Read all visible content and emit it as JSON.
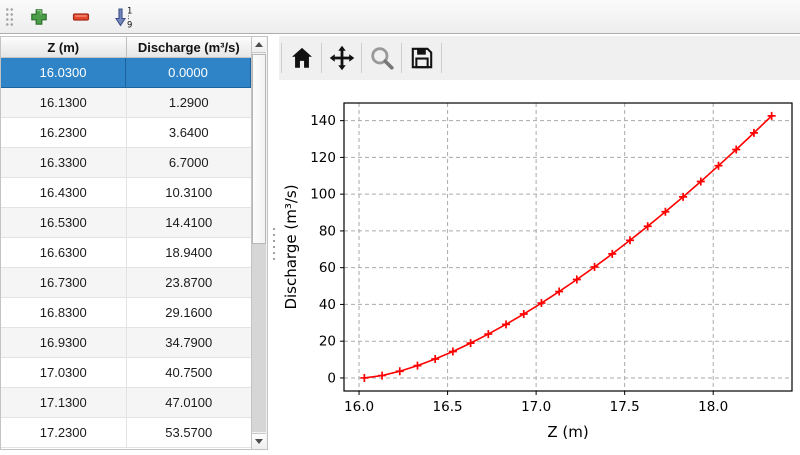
{
  "toolbar": {
    "buttons": [
      {
        "name": "add-row",
        "icon": "plus-icon"
      },
      {
        "name": "remove-row",
        "icon": "minus-icon"
      },
      {
        "name": "sort-rows",
        "icon": "sort-ascending-icon",
        "sort_top": "1",
        "sort_bottom": "9"
      }
    ]
  },
  "table": {
    "columns": [
      "Z (m)",
      "Discharge (m³/s)"
    ],
    "selected_row_index": 0,
    "rows": [
      [
        "16.0300",
        "0.0000"
      ],
      [
        "16.1300",
        "1.2900"
      ],
      [
        "16.2300",
        "3.6400"
      ],
      [
        "16.3300",
        "6.7000"
      ],
      [
        "16.4300",
        "10.3100"
      ],
      [
        "16.5300",
        "14.4100"
      ],
      [
        "16.6300",
        "18.9400"
      ],
      [
        "16.7300",
        "23.8700"
      ],
      [
        "16.8300",
        "29.1600"
      ],
      [
        "16.9300",
        "34.7900"
      ],
      [
        "17.0300",
        "40.7500"
      ],
      [
        "17.1300",
        "47.0100"
      ],
      [
        "17.2300",
        "53.5700"
      ]
    ]
  },
  "chart_toolbar": {
    "buttons": [
      {
        "name": "home",
        "icon": "home-icon"
      },
      {
        "name": "pan",
        "icon": "pan-icon"
      },
      {
        "name": "zoom",
        "icon": "magnifier-icon"
      },
      {
        "name": "save",
        "icon": "save-icon"
      }
    ]
  },
  "chart_data": {
    "type": "line",
    "title": "",
    "xlabel": "Z (m)",
    "ylabel": "Discharge (m³/s)",
    "x": [
      16.03,
      16.13,
      16.23,
      16.33,
      16.43,
      16.53,
      16.63,
      16.73,
      16.83,
      16.93,
      17.03,
      17.13,
      17.23,
      17.33,
      17.43,
      17.53,
      17.63,
      17.73,
      17.83,
      17.93,
      18.03,
      18.13,
      18.23,
      18.33
    ],
    "series": [
      {
        "name": "discharge-curve",
        "values": [
          0.0,
          1.29,
          3.64,
          6.7,
          10.31,
          14.41,
          18.94,
          23.87,
          29.16,
          34.79,
          40.75,
          47.01,
          53.57,
          60.41,
          67.52,
          74.9,
          82.53,
          90.41,
          98.53,
          106.89,
          115.48,
          124.3,
          133.34,
          142.6
        ],
        "color": "#ff0000",
        "marker": "+"
      }
    ],
    "xlim": [
      15.915,
      18.445
    ],
    "ylim": [
      -7.1,
      149.6
    ],
    "xticks": [
      "16.0",
      "16.5",
      "17.0",
      "17.5",
      "18.0"
    ],
    "yticks": [
      0,
      20,
      40,
      60,
      80,
      100,
      120,
      140
    ],
    "grid": true,
    "grid_style": "dashed",
    "grid_color": "#aaaaaa",
    "legend": false
  },
  "colors": {
    "selection": "#2f84c7",
    "selection_text": "#ffffff",
    "row_alt": "#f5f5f5",
    "window_bg": "#f0f0f0",
    "line": "#ff0000"
  }
}
